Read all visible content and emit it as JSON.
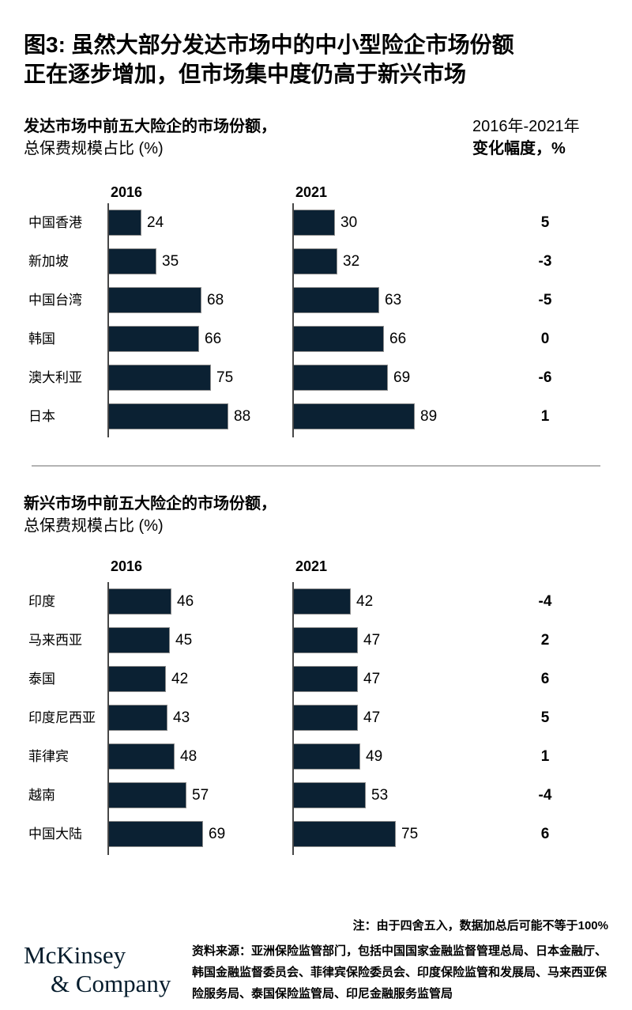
{
  "title_lines": [
    "图3: 虽然大部分发达市场中的中小型险企市场份额",
    "正在逐步增加，但市场集中度仍高于新兴市场"
  ],
  "change_header": {
    "line1": "2016年-2021年",
    "line2": "变化幅度，%"
  },
  "colors": {
    "bar": "#0b2133",
    "bar_border": "#8c8c8c",
    "axis": "#474747",
    "divider": "#b3b3b3",
    "logo": "#051c2c"
  },
  "chart_data": [
    {
      "type": "bar",
      "title": "发达市场中前五大险企的市场份额，",
      "subtitle": "总保费规模占比 (%)",
      "xlim": [
        0,
        100
      ],
      "categories": [
        "中国香港",
        "新加坡",
        "中国台湾",
        "韩国",
        "澳大利亚",
        "日本"
      ],
      "series": [
        {
          "name": "2016",
          "values": [
            24,
            35,
            68,
            66,
            75,
            88
          ]
        },
        {
          "name": "2021",
          "values": [
            30,
            32,
            63,
            66,
            69,
            89
          ]
        }
      ],
      "change": [
        5,
        -3,
        -5,
        0,
        -6,
        1
      ]
    },
    {
      "type": "bar",
      "title": "新兴市场中前五大险企的市场份额，",
      "subtitle": "总保费规模占比 (%)",
      "xlim": [
        0,
        100
      ],
      "categories": [
        "印度",
        "马来西亚",
        "泰国",
        "印度尼西亚",
        "菲律宾",
        "越南",
        "中国大陆"
      ],
      "series": [
        {
          "name": "2016",
          "values": [
            46,
            45,
            42,
            43,
            48,
            57,
            69
          ]
        },
        {
          "name": "2021",
          "values": [
            42,
            47,
            47,
            47,
            49,
            53,
            75
          ]
        }
      ],
      "change": [
        -4,
        2,
        6,
        5,
        1,
        -4,
        6
      ]
    }
  ],
  "footer": {
    "note": "注：由于四舍五入，数据加总后可能不等于100%",
    "source": "资料来源：亚洲保险监管部门，包括中国国家金融监督管理总局、日本金融厅、韩国金融监督委员会、菲律宾保险委员会、印度保险监管和发展局、马来西亚保险服务局、泰国保险监管局、印尼金融服务监管局",
    "logo_line1": "McKinsey",
    "logo_line2": "& Company"
  }
}
